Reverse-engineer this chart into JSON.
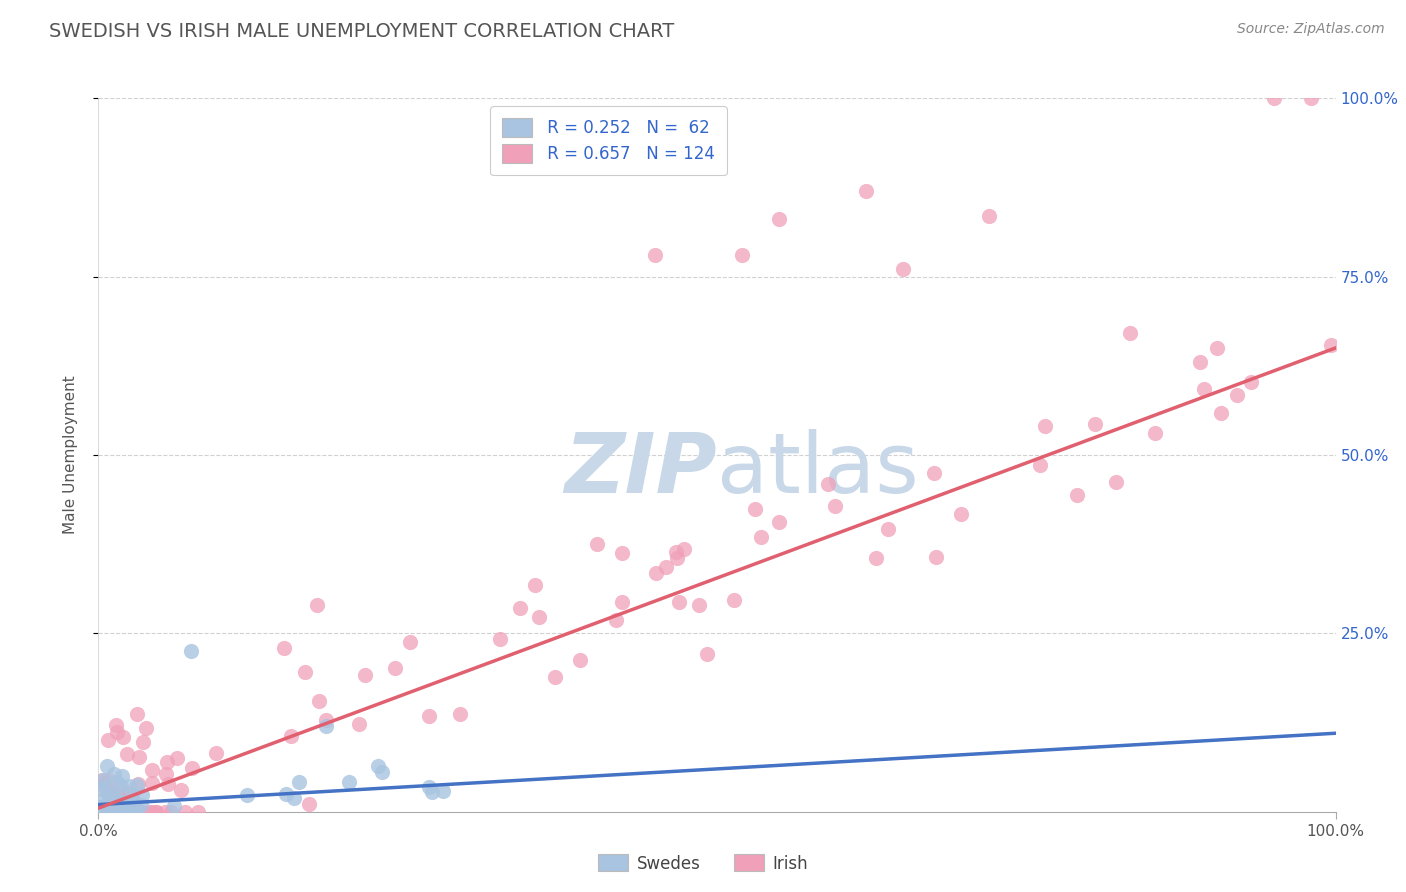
{
  "title": "SWEDISH VS IRISH MALE UNEMPLOYMENT CORRELATION CHART",
  "source_text": "Source: ZipAtlas.com",
  "ylabel": "Male Unemployment",
  "swede_R": 0.252,
  "swede_N": 62,
  "irish_R": 0.657,
  "irish_N": 124,
  "swede_color": "#a8c4e0",
  "irish_color": "#f0a0b8",
  "swede_line_color": "#4472c4",
  "irish_line_color": "#e06070",
  "legend_text_color": "#3366cc",
  "legend_label_color": "#222222",
  "background_color": "#ffffff",
  "grid_color": "#cccccc",
  "title_color": "#555555",
  "watermark_color": "#c8d8e8",
  "right_axis_color": "#3366cc",
  "swede_trend_slope": 0.1,
  "swede_trend_intercept": 0.01,
  "irish_trend_slope": 0.645,
  "irish_trend_intercept": 0.005
}
